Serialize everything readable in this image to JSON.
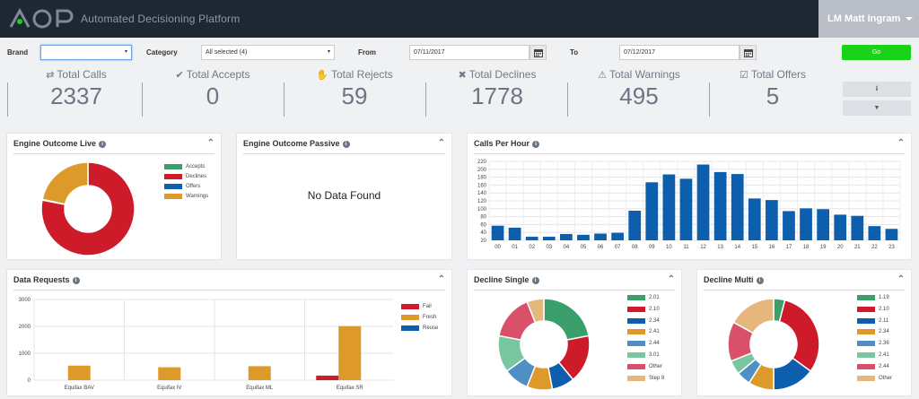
{
  "header": {
    "logo_text": "ADP",
    "app_title": "Automated Decisioning Platform",
    "user_name": "LM Matt Ingram"
  },
  "filters": {
    "brand_label": "Brand",
    "brand_value": "",
    "category_label": "Category",
    "category_value": "All selected (4)",
    "from_label": "From",
    "from_value": "07/11/2017",
    "to_label": "To",
    "to_value": "07/12/2017",
    "go_label": "Go"
  },
  "stats": [
    {
      "icon": "exchange-icon",
      "glyph": "⇄",
      "label": "Total Calls",
      "value": "2337"
    },
    {
      "icon": "check-icon",
      "glyph": "✔",
      "label": "Total Accepts",
      "value": "0"
    },
    {
      "icon": "hand-icon",
      "glyph": "✋",
      "label": "Total Rejects",
      "value": "59"
    },
    {
      "icon": "times-icon",
      "glyph": "✖",
      "label": "Total Declines",
      "value": "1778"
    },
    {
      "icon": "warning-icon",
      "glyph": "⚠",
      "label": "Total Warnings",
      "value": "495"
    },
    {
      "icon": "checkbox-icon",
      "glyph": "☑",
      "label": "Total Offers",
      "value": "5"
    }
  ],
  "side_buttons": {
    "info_glyph": "ℹ",
    "filter_glyph": "▼"
  },
  "panels": {
    "engine_live": {
      "title": "Engine Outcome Live",
      "info": "i",
      "collapse": "⌃"
    },
    "engine_passive": {
      "title": "Engine Outcome Passive",
      "info": "i",
      "collapse": "⌃",
      "empty_text": "No Data Found"
    },
    "calls_per_hour": {
      "title": "Calls Per Hour",
      "info": "i",
      "collapse": "⌃"
    },
    "data_requests": {
      "title": "Data Requests",
      "info": "i",
      "collapse": "⌃"
    },
    "decline_single": {
      "title": "Decline Single",
      "info": "i",
      "collapse": "⌃"
    },
    "decline_multi": {
      "title": "Decline Multi",
      "info": "i",
      "collapse": "⌃"
    }
  },
  "colors": {
    "green": "#3b9f6b",
    "red": "#cd1b2a",
    "blue": "#0d5fae",
    "orange": "#dd9a2a",
    "steel": "#4f8fc4",
    "mint": "#78c7a0",
    "pink": "#d9506a",
    "sand": "#e5b77c",
    "bar": "#0d5fae",
    "go": "#19d319",
    "header": "#1e2833"
  },
  "chart_data": [
    {
      "id": "engine_live",
      "type": "pie",
      "title": "Engine Outcome Live",
      "labels": [
        "Accepts",
        "Declines",
        "Offers",
        "Warnings"
      ],
      "values": [
        0,
        1778,
        5,
        495
      ],
      "colors": [
        "#3b9f6b",
        "#cd1b2a",
        "#0d5fae",
        "#dd9a2a"
      ],
      "donut": true,
      "legend": "right"
    },
    {
      "id": "calls_per_hour",
      "type": "bar",
      "title": "Calls Per Hour",
      "categories": [
        "00",
        "01",
        "02",
        "03",
        "04",
        "05",
        "06",
        "07",
        "08",
        "09",
        "10",
        "11",
        "12",
        "13",
        "14",
        "15",
        "16",
        "17",
        "18",
        "19",
        "20",
        "21",
        "22",
        "23"
      ],
      "values": [
        57,
        52,
        29,
        29,
        36,
        34,
        37,
        39,
        95,
        167,
        187,
        176,
        212,
        193,
        188,
        126,
        122,
        94,
        101,
        99,
        85,
        82,
        56,
        49
      ],
      "yticks": [
        "20",
        "40",
        "60",
        "80",
        "100",
        "120",
        "140",
        "160",
        "180",
        "200",
        "220"
      ],
      "ylim": [
        20,
        220
      ],
      "grid": true
    },
    {
      "id": "data_requests",
      "type": "bar",
      "title": "Data Requests",
      "categories": [
        "Equifax BAV",
        "Equifax IV",
        "Equifax ML",
        "Equifax SR"
      ],
      "yticks": [
        "0",
        "1000",
        "2000",
        "3000"
      ],
      "ylim": [
        0,
        3000
      ],
      "series": [
        {
          "name": "Fail",
          "values": [
            0,
            0,
            0,
            170
          ],
          "color": "#cd1b2a"
        },
        {
          "name": "Fresh",
          "values": [
            540,
            480,
            520,
            2010
          ],
          "color": "#dd9a2a"
        },
        {
          "name": "Reuse",
          "values": [
            0,
            0,
            0,
            0
          ],
          "color": "#0d5fae"
        }
      ],
      "legend": "right"
    },
    {
      "id": "decline_single",
      "type": "pie",
      "title": "Decline Single",
      "labels": [
        "2.01",
        "2.10",
        "2.34",
        "2.41",
        "2.44",
        "3.01",
        "Other",
        "Step 8"
      ],
      "values": [
        22,
        17,
        8,
        9,
        9,
        13,
        16,
        6
      ],
      "colors": [
        "#3b9f6b",
        "#cd1b2a",
        "#0d5fae",
        "#dd9a2a",
        "#4f8fc4",
        "#78c7a0",
        "#d9506a",
        "#e5b77c"
      ],
      "donut": true,
      "legend": "right"
    },
    {
      "id": "decline_multi",
      "type": "pie",
      "title": "Decline Multi",
      "labels": [
        "1.19",
        "2.10",
        "2.11",
        "2.34",
        "2.36",
        "2.41",
        "2.44",
        "Other"
      ],
      "values": [
        4,
        31,
        15,
        9,
        5,
        5,
        14,
        17
      ],
      "colors": [
        "#3b9f6b",
        "#cd1b2a",
        "#0d5fae",
        "#dd9a2a",
        "#4f8fc4",
        "#78c7a0",
        "#d9506a",
        "#e5b77c"
      ],
      "donut": true,
      "legend": "right"
    }
  ]
}
